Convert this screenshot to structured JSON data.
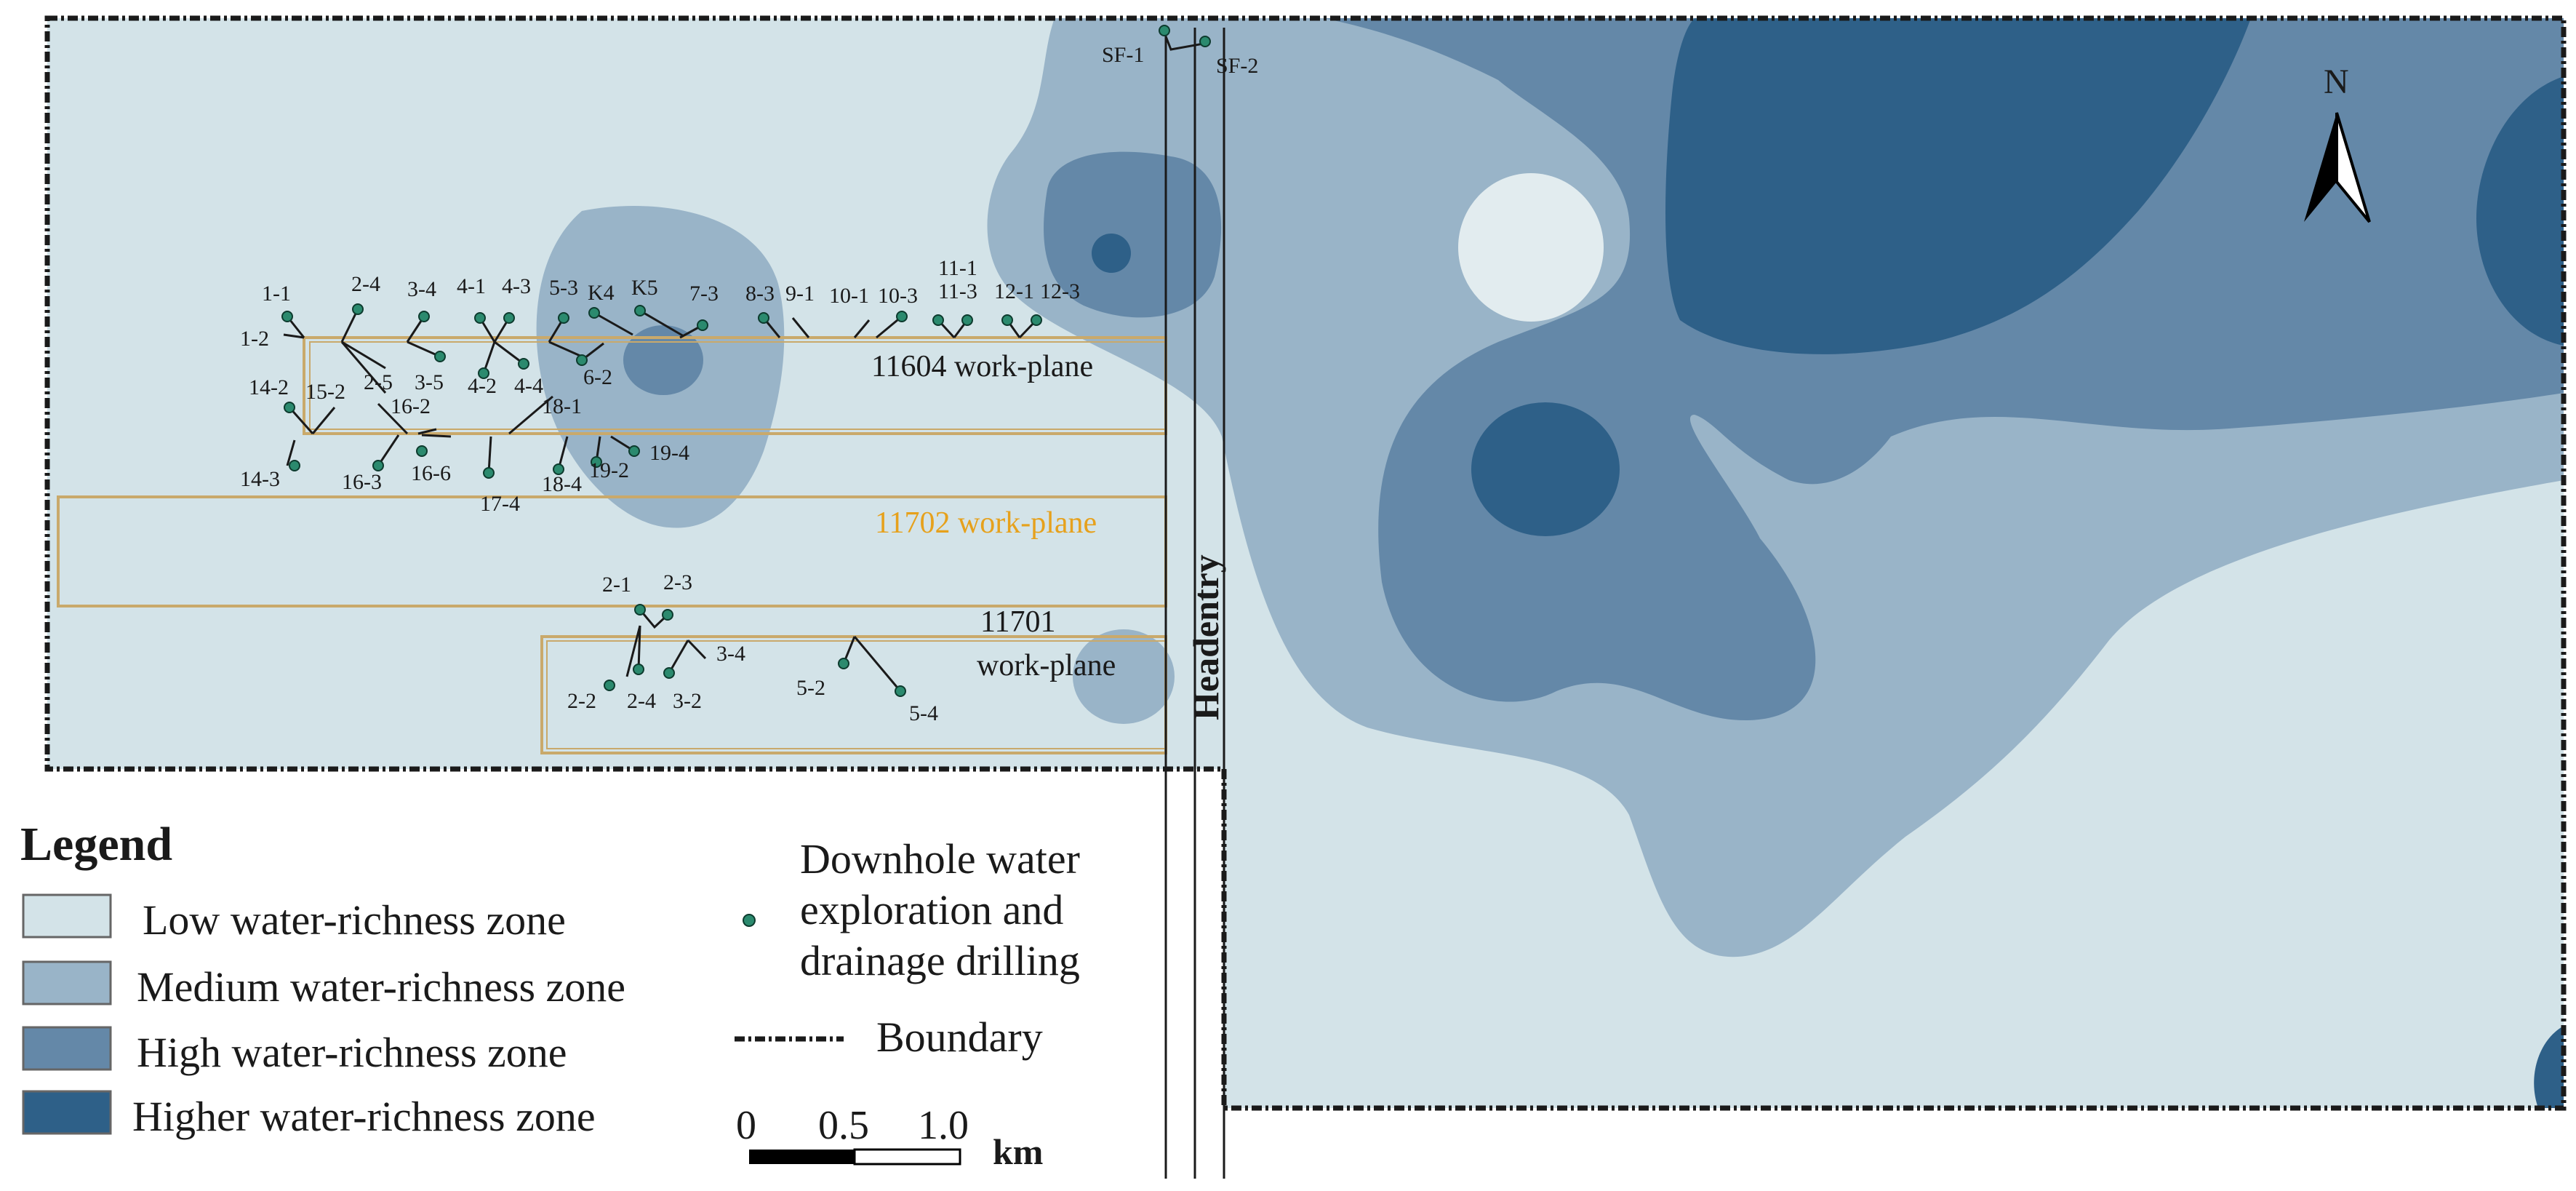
{
  "zones": {
    "low": {
      "label": "Low water-richness zone",
      "color": "#d3e3e8"
    },
    "medium": {
      "label": "Medium water-richness zone",
      "color": "#99b4c8"
    },
    "high": {
      "label": "High water-richness zone",
      "color": "#6488a8"
    },
    "higher": {
      "label": "Higher water-richness zone",
      "color": "#2e6088"
    }
  },
  "work_planes": {
    "p11604": "11604 work-plane",
    "p11702": "11702 work-plane",
    "p11701_line1": "11701",
    "p11701_line2": "work-plane"
  },
  "headentry": "Headentry",
  "north": "N",
  "legend": {
    "title": "Legend",
    "drilling_line1": "Downhole water",
    "drilling_line2": "exploration and",
    "drilling_line3": "drainage drilling",
    "boundary": "Boundary"
  },
  "scale_bar": {
    "t0": "0",
    "t1": "0.5",
    "t2": "1.0",
    "unit": "km"
  },
  "holes": [
    "1-1",
    "1-2",
    "2-4",
    "3-4",
    "4-1",
    "4-3",
    "5-3",
    "K4",
    "K5",
    "7-3",
    "8-3",
    "9-1",
    "10-1",
    "10-3",
    "11-1",
    "11-3",
    "12-1",
    "12-3",
    "14-2",
    "15-2",
    "2-5",
    "3-5",
    "4-2",
    "4-4",
    "6-2",
    "16-2",
    "18-1",
    "14-3",
    "16-3",
    "16-6",
    "17-4",
    "18-4",
    "19-2",
    "19-4",
    "SF-1",
    "SF-2",
    "2-1",
    "2-3",
    "2-2",
    "2-4",
    "3-2",
    "3-4",
    "5-2",
    "5-4"
  ],
  "colors": {
    "drill_point": "#2b8a6e",
    "work_plane_edge": "#c9a96b",
    "line": "#1a1a1a",
    "wp11702_text": "#e6a11c"
  }
}
